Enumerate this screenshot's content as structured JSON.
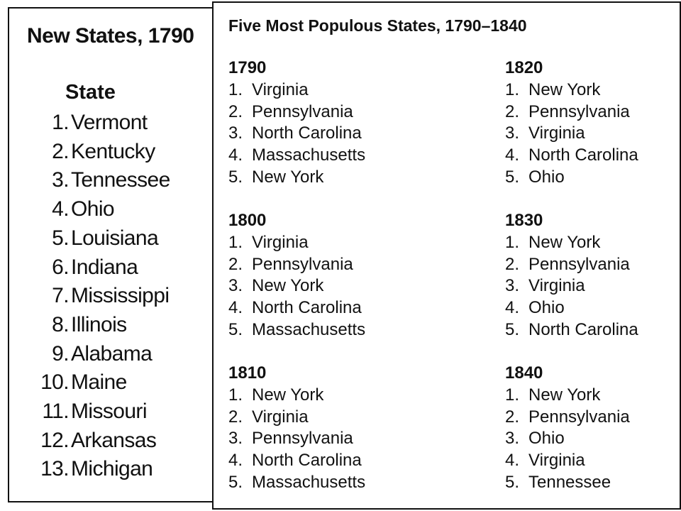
{
  "new_states": {
    "title": "New States, 1790",
    "header": "State",
    "items": [
      {
        "rank": "1.",
        "name": "Vermont"
      },
      {
        "rank": "2.",
        "name": "Kentucky"
      },
      {
        "rank": "3.",
        "name": "Tennessee"
      },
      {
        "rank": "4.",
        "name": "Ohio"
      },
      {
        "rank": "5.",
        "name": "Louisiana"
      },
      {
        "rank": "6.",
        "name": "Indiana"
      },
      {
        "rank": "7.",
        "name": "Mississippi"
      },
      {
        "rank": "8.",
        "name": "Illinois"
      },
      {
        "rank": "9.",
        "name": "Alabama"
      },
      {
        "rank": "10.",
        "name": "Maine"
      },
      {
        "rank": "11.",
        "name": "Missouri"
      },
      {
        "rank": "12.",
        "name": "Arkansas"
      },
      {
        "rank": "13.",
        "name": "Michigan"
      }
    ]
  },
  "populous": {
    "title": "Five Most Populous States, 1790–1840",
    "sections": [
      {
        "year": "1790",
        "items": [
          {
            "rank": "1.",
            "name": "Virginia"
          },
          {
            "rank": "2.",
            "name": "Pennsylvania"
          },
          {
            "rank": "3.",
            "name": "North Carolina"
          },
          {
            "rank": "4.",
            "name": "Massachusetts"
          },
          {
            "rank": "5.",
            "name": "New York"
          }
        ]
      },
      {
        "year": "1800",
        "items": [
          {
            "rank": "1.",
            "name": "Virginia"
          },
          {
            "rank": "2.",
            "name": "Pennsylvania"
          },
          {
            "rank": "3.",
            "name": "New York"
          },
          {
            "rank": "4.",
            "name": "North Carolina"
          },
          {
            "rank": "5.",
            "name": "Massachusetts"
          }
        ]
      },
      {
        "year": "1810",
        "items": [
          {
            "rank": "1.",
            "name": "New York"
          },
          {
            "rank": "2.",
            "name": "Virginia"
          },
          {
            "rank": "3.",
            "name": "Pennsylvania"
          },
          {
            "rank": "4.",
            "name": "North Carolina"
          },
          {
            "rank": "5.",
            "name": "Massachusetts"
          }
        ]
      },
      {
        "year": "1820",
        "items": [
          {
            "rank": "1.",
            "name": "New York"
          },
          {
            "rank": "2.",
            "name": "Pennsylvania"
          },
          {
            "rank": "3.",
            "name": "Virginia"
          },
          {
            "rank": "4.",
            "name": "North Carolina"
          },
          {
            "rank": "5.",
            "name": "Ohio"
          }
        ]
      },
      {
        "year": "1830",
        "items": [
          {
            "rank": "1.",
            "name": "New York"
          },
          {
            "rank": "2.",
            "name": "Pennsylvania"
          },
          {
            "rank": "3.",
            "name": "Virginia"
          },
          {
            "rank": "4.",
            "name": "Ohio"
          },
          {
            "rank": "5.",
            "name": "North Carolina"
          }
        ]
      },
      {
        "year": "1840",
        "items": [
          {
            "rank": "1.",
            "name": "New York"
          },
          {
            "rank": "2.",
            "name": "Pennsylvania"
          },
          {
            "rank": "3.",
            "name": "Ohio"
          },
          {
            "rank": "4.",
            "name": "Virginia"
          },
          {
            "rank": "5.",
            "name": "Tennessee"
          }
        ]
      }
    ]
  }
}
